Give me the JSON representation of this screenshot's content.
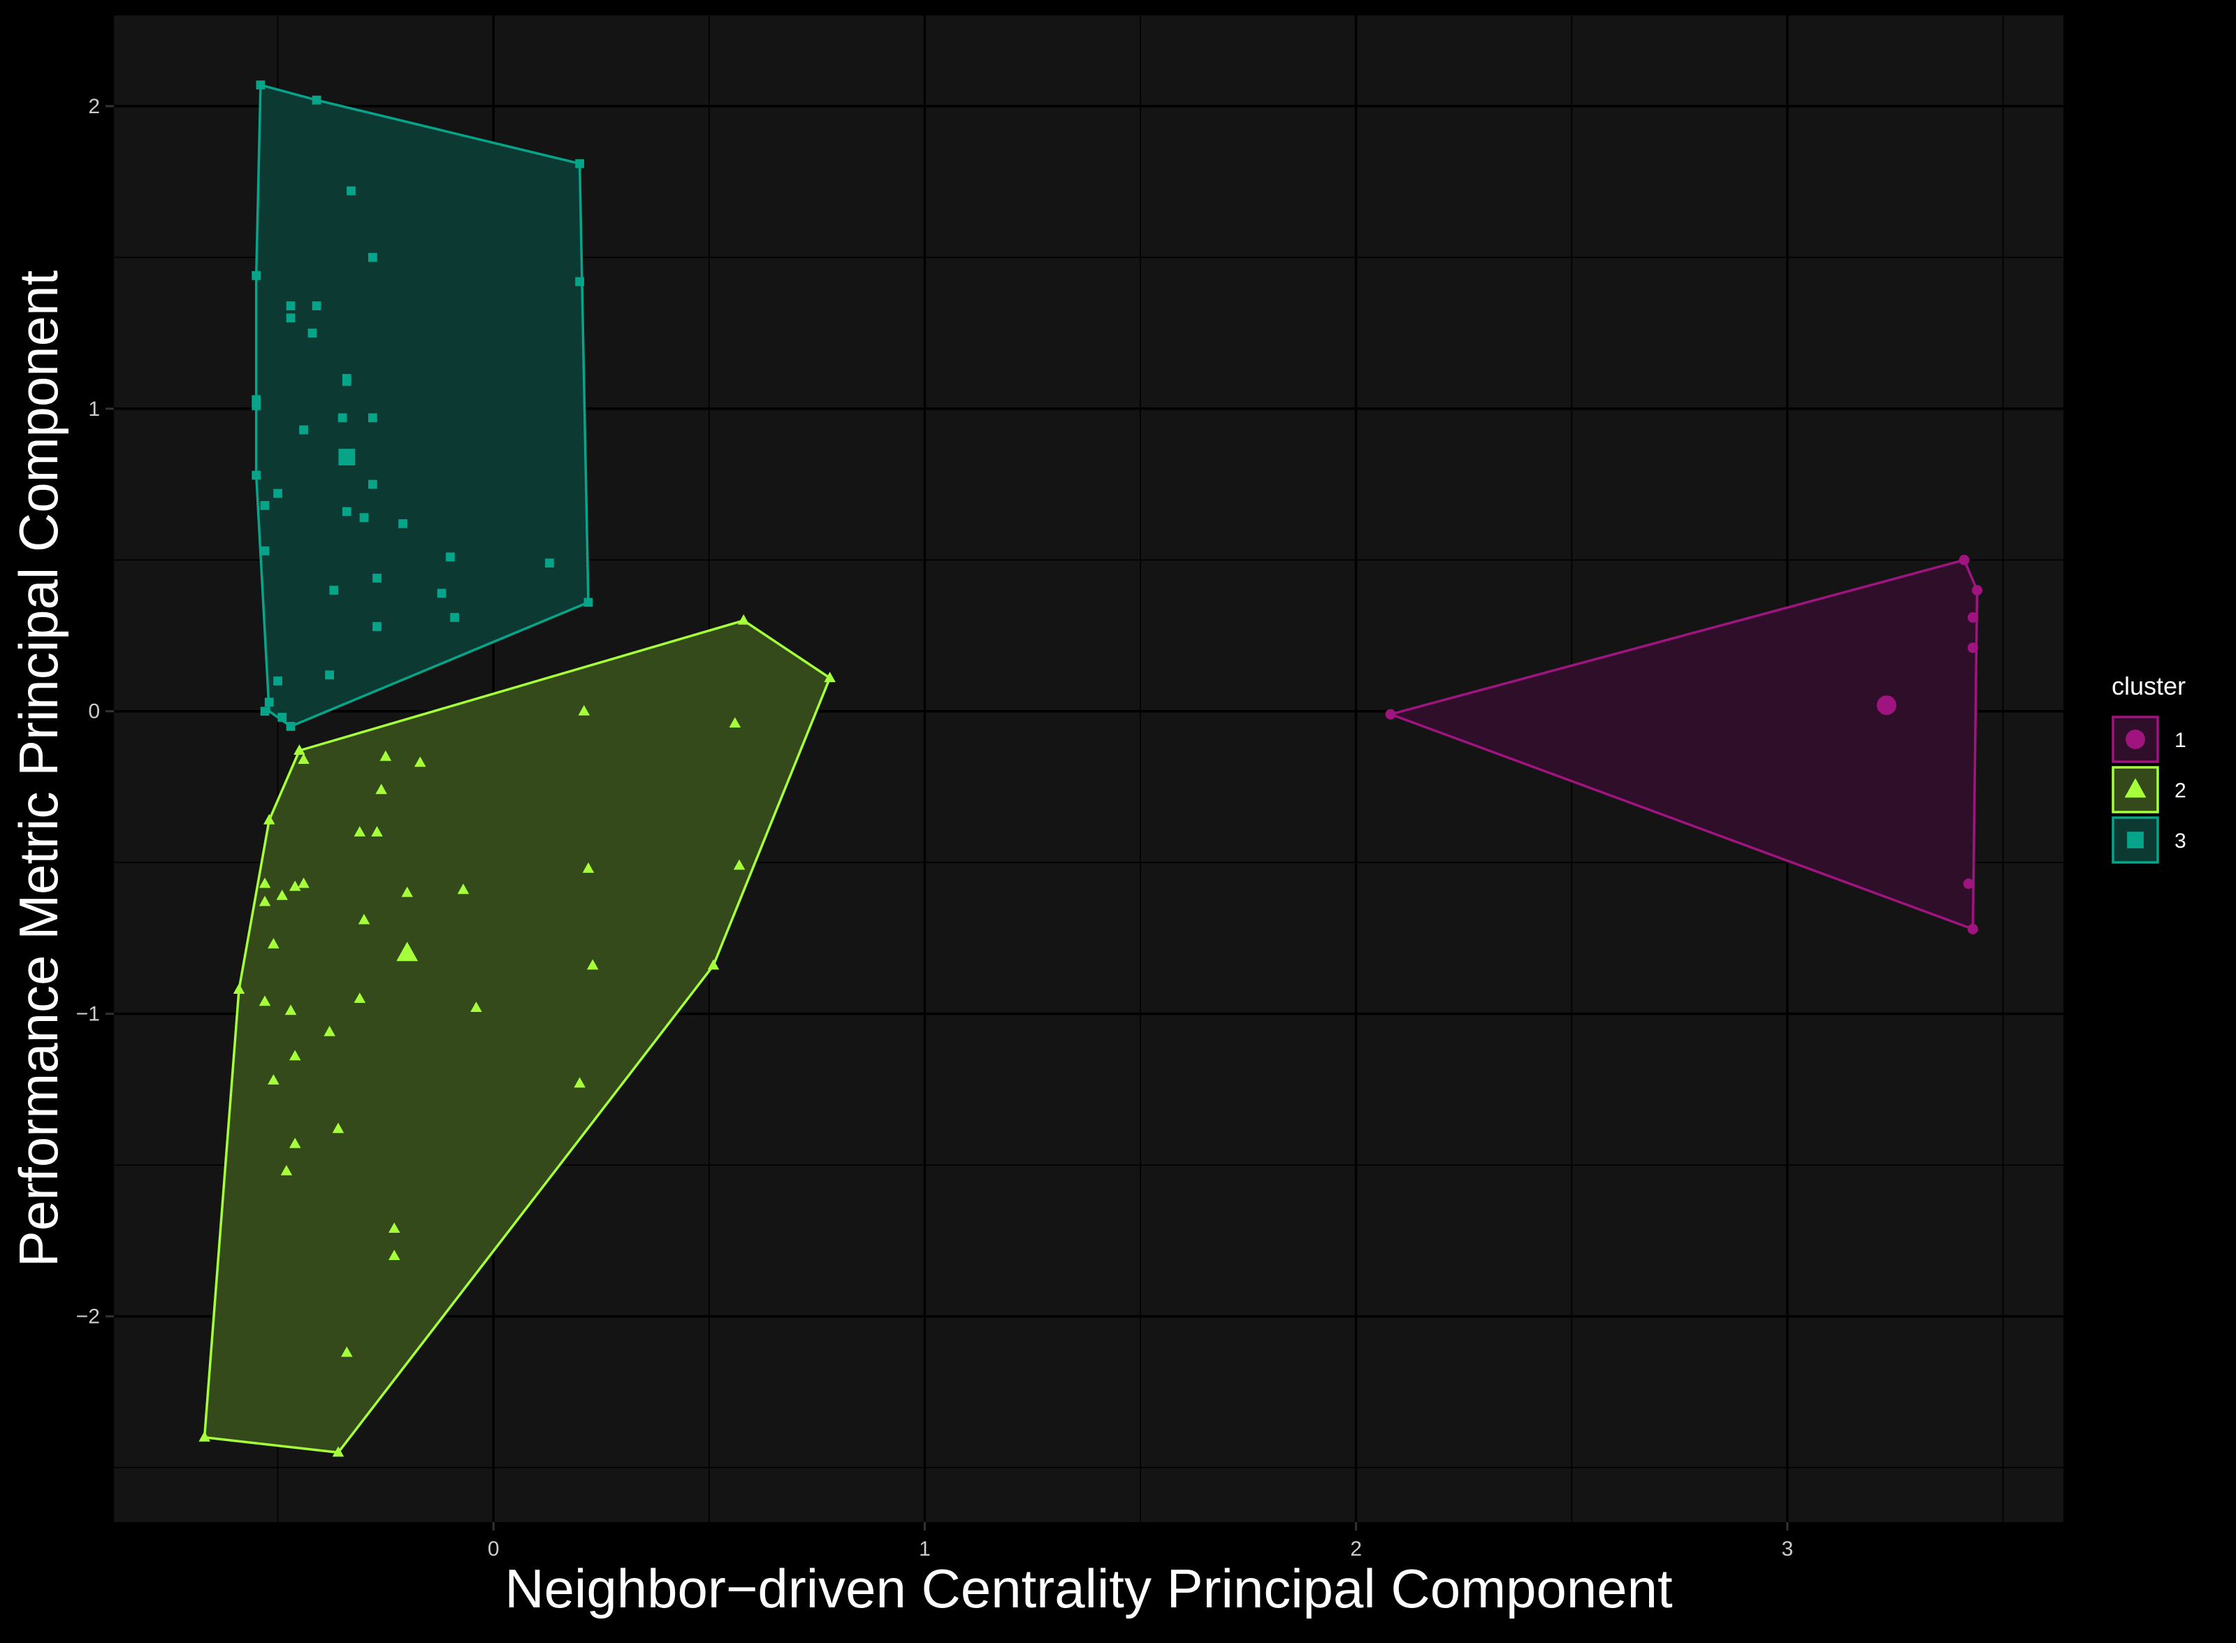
{
  "chart_data": {
    "type": "scatter",
    "title": "",
    "xlabel": "Neighbor−driven Centrality Principal Component",
    "ylabel": "Performance Metric Principal Component",
    "xlim": [
      -0.88,
      3.64
    ],
    "ylim": [
      -2.68,
      2.3
    ],
    "x_ticks": [
      0,
      1,
      2,
      3
    ],
    "x_tick_labels": [
      "0",
      "1",
      "2",
      "3"
    ],
    "y_ticks": [
      -2,
      -1,
      0,
      1,
      2
    ],
    "y_tick_labels": [
      "−2",
      "−1",
      "0",
      "1",
      "2"
    ],
    "grid": true,
    "legend": {
      "title": "cluster",
      "placement": "right"
    },
    "series": [
      {
        "name": "1",
        "shape": "circle",
        "color": "#A0147F",
        "fill": "#2E0E29",
        "centroid": [
          3.23,
          0.02
        ],
        "hull": [
          [
            2.08,
            -0.01
          ],
          [
            3.41,
            0.5
          ],
          [
            3.44,
            0.4
          ],
          [
            3.43,
            -0.72
          ]
        ],
        "points": [
          [
            2.08,
            -0.01
          ],
          [
            3.41,
            0.5
          ],
          [
            3.44,
            0.4
          ],
          [
            3.43,
            0.31
          ],
          [
            3.43,
            0.21
          ],
          [
            3.42,
            -0.57
          ],
          [
            3.43,
            -0.72
          ]
        ]
      },
      {
        "name": "2",
        "shape": "triangle",
        "color": "#A5FF3A",
        "fill": "#344A1A",
        "centroid": [
          -0.2,
          -0.8
        ],
        "hull": [
          [
            -0.67,
            -2.4
          ],
          [
            -0.36,
            -2.45
          ],
          [
            0.51,
            -0.84
          ],
          [
            0.78,
            0.11
          ],
          [
            0.58,
            0.3
          ],
          [
            -0.45,
            -0.13
          ],
          [
            -0.52,
            -0.36
          ],
          [
            -0.59,
            -0.92
          ]
        ],
        "points": [
          [
            -0.67,
            -2.4
          ],
          [
            -0.36,
            -2.45
          ],
          [
            0.51,
            -0.84
          ],
          [
            0.78,
            0.11
          ],
          [
            0.58,
            0.3
          ],
          [
            0.21,
            0.0
          ],
          [
            0.56,
            -0.04
          ],
          [
            0.57,
            -0.51
          ],
          [
            0.22,
            -0.52
          ],
          [
            0.23,
            -0.84
          ],
          [
            0.2,
            -1.23
          ],
          [
            -0.04,
            -0.98
          ],
          [
            -0.07,
            -0.59
          ],
          [
            -0.17,
            -0.17
          ],
          [
            -0.25,
            -0.15
          ],
          [
            -0.26,
            -0.26
          ],
          [
            -0.27,
            -0.4
          ],
          [
            -0.31,
            -0.4
          ],
          [
            -0.3,
            -0.69
          ],
          [
            -0.2,
            -0.6
          ],
          [
            -0.31,
            -0.95
          ],
          [
            -0.38,
            -1.06
          ],
          [
            -0.36,
            -1.38
          ],
          [
            -0.23,
            -1.71
          ],
          [
            -0.23,
            -1.8
          ],
          [
            -0.34,
            -2.12
          ],
          [
            -0.45,
            -0.13
          ],
          [
            -0.44,
            -0.16
          ],
          [
            -0.52,
            -0.36
          ],
          [
            -0.44,
            -0.57
          ],
          [
            -0.46,
            -0.58
          ],
          [
            -0.49,
            -0.61
          ],
          [
            -0.53,
            -0.57
          ],
          [
            -0.53,
            -0.63
          ],
          [
            -0.51,
            -0.77
          ],
          [
            -0.59,
            -0.92
          ],
          [
            -0.53,
            -0.96
          ],
          [
            -0.47,
            -0.99
          ],
          [
            -0.46,
            -1.14
          ],
          [
            -0.51,
            -1.22
          ],
          [
            -0.46,
            -1.43
          ],
          [
            -0.48,
            -1.52
          ]
        ]
      },
      {
        "name": "3",
        "shape": "square",
        "color": "#06A58A",
        "fill": "#0C3A32",
        "centroid": [
          -0.34,
          0.84
        ],
        "hull": [
          [
            -0.54,
            2.07
          ],
          [
            -0.41,
            2.02
          ],
          [
            0.2,
            1.81
          ],
          [
            0.22,
            0.36
          ],
          [
            -0.47,
            -0.05
          ],
          [
            -0.52,
            0.0
          ],
          [
            -0.55,
            0.78
          ],
          [
            -0.55,
            1.44
          ]
        ],
        "points": [
          [
            -0.54,
            2.07
          ],
          [
            -0.41,
            2.02
          ],
          [
            0.2,
            1.81
          ],
          [
            0.2,
            1.42
          ],
          [
            0.22,
            0.36
          ],
          [
            0.13,
            0.49
          ],
          [
            -0.1,
            0.51
          ],
          [
            -0.12,
            0.39
          ],
          [
            -0.09,
            0.31
          ],
          [
            -0.21,
            0.62
          ],
          [
            -0.27,
            0.44
          ],
          [
            -0.27,
            0.28
          ],
          [
            -0.28,
            0.75
          ],
          [
            -0.28,
            0.97
          ],
          [
            -0.28,
            1.5
          ],
          [
            -0.33,
            1.72
          ],
          [
            -0.34,
            1.1
          ],
          [
            -0.34,
            1.09
          ],
          [
            -0.35,
            0.97
          ],
          [
            -0.34,
            0.66
          ],
          [
            -0.3,
            0.64
          ],
          [
            -0.37,
            0.4
          ],
          [
            -0.38,
            0.12
          ],
          [
            -0.42,
            1.25
          ],
          [
            -0.41,
            1.34
          ],
          [
            -0.47,
            1.3
          ],
          [
            -0.47,
            1.34
          ],
          [
            -0.44,
            0.93
          ],
          [
            -0.5,
            0.72
          ],
          [
            -0.53,
            0.68
          ],
          [
            -0.55,
            0.78
          ],
          [
            -0.55,
            1.03
          ],
          [
            -0.55,
            1.01
          ],
          [
            -0.55,
            1.44
          ],
          [
            -0.53,
            0.53
          ],
          [
            -0.52,
            0.03
          ],
          [
            -0.53,
            0.0
          ],
          [
            -0.5,
            0.1
          ],
          [
            -0.49,
            -0.02
          ],
          [
            -0.47,
            -0.05
          ]
        ]
      }
    ]
  }
}
